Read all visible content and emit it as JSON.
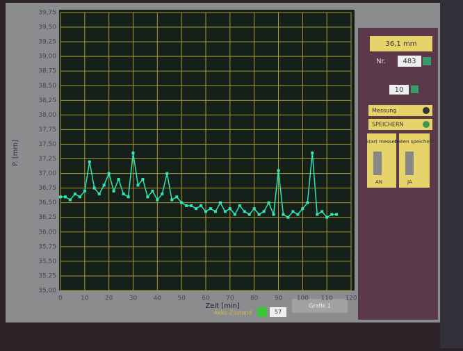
{
  "chart_data": {
    "type": "line",
    "x_label": "Zeit [min]",
    "y_label": "P. [mm]",
    "x": [
      0,
      2,
      4,
      6,
      8,
      10,
      12,
      14,
      16,
      18,
      20,
      22,
      24,
      26,
      28,
      30,
      32,
      34,
      36,
      38,
      40,
      42,
      44,
      46,
      48,
      50,
      52,
      54,
      56,
      58,
      60,
      62,
      64,
      66,
      68,
      70,
      72,
      74,
      76,
      78,
      80,
      82,
      84,
      86,
      88,
      90,
      92,
      94,
      96,
      98,
      100,
      102,
      104,
      106,
      108,
      110,
      112,
      114
    ],
    "series": [
      {
        "color": "#2fe6b4",
        "values": [
          36.6,
          36.6,
          36.55,
          36.65,
          36.6,
          36.7,
          37.2,
          36.75,
          36.65,
          36.8,
          37.0,
          36.7,
          36.9,
          36.65,
          36.6,
          37.35,
          36.8,
          36.9,
          36.6,
          36.7,
          36.55,
          36.65,
          37.0,
          36.55,
          36.6,
          36.5,
          36.45,
          36.45,
          36.4,
          36.45,
          36.35,
          36.4,
          36.35,
          36.5,
          36.35,
          36.4,
          36.3,
          36.45,
          36.35,
          36.3,
          36.4,
          36.3,
          36.35,
          36.5,
          36.3,
          37.05,
          36.3,
          36.25,
          36.35,
          36.3,
          36.4,
          36.5,
          37.35,
          36.3,
          36.35,
          36.25,
          36.3,
          36.3
        ]
      }
    ],
    "xlim": [
      0,
      120
    ],
    "xticks": [
      0,
      10,
      20,
      30,
      40,
      50,
      60,
      70,
      80,
      90,
      100,
      110,
      120
    ],
    "ylim": [
      35,
      39.75
    ],
    "yticks": [
      {
        "value": 35,
        "label": "35,00"
      },
      {
        "value": 35.25,
        "label": "35,25"
      },
      {
        "value": 35.5,
        "label": "35,50"
      },
      {
        "value": 35.75,
        "label": "35,75"
      },
      {
        "value": 36,
        "label": "36,00"
      },
      {
        "value": 36.25,
        "label": "36,25"
      },
      {
        "value": 36.5,
        "label": "36,50"
      },
      {
        "value": 36.75,
        "label": "36,75"
      },
      {
        "value": 37,
        "label": "37,00"
      },
      {
        "value": 37.25,
        "label": "37,25"
      },
      {
        "value": 37.5,
        "label": "37,50"
      },
      {
        "value": 37.75,
        "label": "37,75"
      },
      {
        "value": 38,
        "label": "38,00"
      },
      {
        "value": 38.25,
        "label": "38,25"
      },
      {
        "value": 38.5,
        "label": "38,50"
      },
      {
        "value": 38.75,
        "label": "38,75"
      },
      {
        "value": 39,
        "label": "39,00"
      },
      {
        "value": 39.25,
        "label": "39,25"
      },
      {
        "value": 39.5,
        "label": "39,50"
      },
      {
        "value": 39.75,
        "label": "39,75"
      }
    ],
    "grid": true
  },
  "panel": {
    "reading": "36,1 mm",
    "nr_label": "Nr.",
    "nr_value": "483",
    "interval": "10",
    "messung": "Messung",
    "speichern": "SPEICHERN",
    "start": "Start messen",
    "start_state": "AN",
    "daten": "Daten speichern",
    "daten_state": "JA"
  },
  "footer": {
    "akku": "Akku-Zustand",
    "akku_value": "57",
    "grafik": "Grafik 1"
  }
}
